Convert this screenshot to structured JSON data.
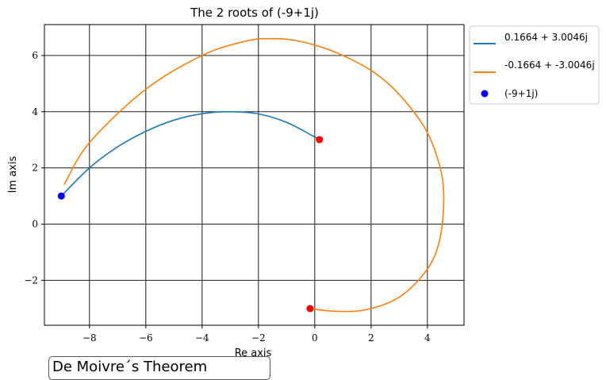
{
  "chart_data": {
    "type": "line",
    "title": "The 2 roots of (-9+1j)",
    "xlabel": "Re axis",
    "ylabel": "Im axis",
    "xlim": [
      -9.6,
      5.3
    ],
    "ylim": [
      -3.6,
      7.1
    ],
    "xticks": [
      -8,
      -6,
      -4,
      -2,
      0,
      2,
      4
    ],
    "xtick_labels": [
      "−8",
      "−6",
      "−4",
      "−2",
      "0",
      "2",
      "4"
    ],
    "yticks": [
      -2,
      0,
      2,
      4,
      6
    ],
    "ytick_labels": [
      "−2",
      "0",
      "2",
      "4",
      "6"
    ],
    "grid": true,
    "legend_position": "outside top-right",
    "series": [
      {
        "name": "0.1664 + 3.0046j",
        "type": "line",
        "color": "#1f77b4",
        "x": [
          -9.0,
          -8.0,
          -7.0,
          -6.0,
          -5.0,
          -4.0,
          -3.0,
          -2.0,
          -1.0,
          0.0,
          0.1664
        ],
        "y": [
          1.0,
          2.0,
          2.75,
          3.3,
          3.7,
          3.93,
          4.0,
          3.92,
          3.62,
          3.1,
          3.0046
        ]
      },
      {
        "name": "-0.1664 + -3.0046j",
        "type": "line",
        "color": "#ff7f0e",
        "x": [
          -8.9,
          -8.0,
          -6.0,
          -4.0,
          -2.5,
          -1.6,
          -0.5,
          1.0,
          2.5,
          3.8,
          4.4,
          4.58,
          4.45,
          4.0,
          3.0,
          1.8,
          0.7,
          -0.1664
        ],
        "y": [
          1.4,
          2.9,
          4.8,
          6.0,
          6.5,
          6.6,
          6.5,
          6.0,
          5.1,
          3.6,
          2.2,
          1.0,
          -0.5,
          -1.6,
          -2.6,
          -3.05,
          -3.1,
          -3.0046
        ]
      },
      {
        "name": "(-9+1j)",
        "type": "scatter",
        "color": "#0000ff",
        "x": [
          -9.0
        ],
        "y": [
          1.0
        ]
      }
    ],
    "roots": {
      "color": "#ff0000",
      "x": [
        0.1664,
        -0.1664
      ],
      "y": [
        3.0046,
        -3.0046
      ]
    }
  },
  "annotation_box": {
    "text": "De Moivre´s Theorem"
  }
}
